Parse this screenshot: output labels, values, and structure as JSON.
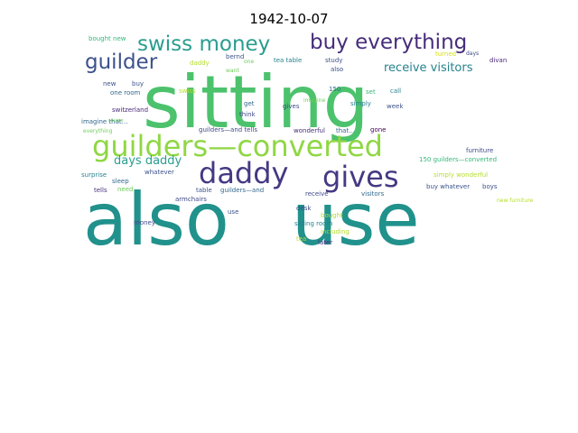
{
  "title": "1942-10-07",
  "words": [
    {
      "text": "sitting",
      "color": "#4cc26c"
    },
    {
      "text": "also",
      "color": "#21918c"
    },
    {
      "text": "use",
      "color": "#21918c"
    },
    {
      "text": "guilders—converted",
      "color": "#8fd744"
    },
    {
      "text": "daddy",
      "color": "#443983"
    },
    {
      "text": "gives",
      "color": "#443983"
    },
    {
      "text": "swiss money",
      "color": "#2a9d8f"
    },
    {
      "text": "buy everything",
      "color": "#472d7b"
    },
    {
      "text": "guilder",
      "color": "#3b528b"
    },
    {
      "text": "receive visitors",
      "color": "#26828e"
    },
    {
      "text": "days daddy",
      "color": "#2a9d8f"
    },
    {
      "text": "bought new",
      "color": "#35b779"
    },
    {
      "text": "daddy",
      "color": "#b5de2b"
    },
    {
      "text": "bernd",
      "color": "#3b528b"
    },
    {
      "text": "one",
      "color": "#6ece58"
    },
    {
      "text": "tea table",
      "color": "#26828e"
    },
    {
      "text": "study",
      "color": "#3b528b"
    },
    {
      "text": "also",
      "color": "#3b528b"
    },
    {
      "text": "turned",
      "color": "#d8e219"
    },
    {
      "text": "days",
      "color": "#3e4989"
    },
    {
      "text": "divan",
      "color": "#482878"
    },
    {
      "text": "want",
      "color": "#6ece58"
    },
    {
      "text": "new",
      "color": "#3b528b"
    },
    {
      "text": "buy",
      "color": "#3b528b"
    },
    {
      "text": "one room",
      "color": "#31688e"
    },
    {
      "text": "swiss",
      "color": "#b5de2b"
    },
    {
      "text": "150",
      "color": "#31688e"
    },
    {
      "text": "set",
      "color": "#35b779"
    },
    {
      "text": "call",
      "color": "#26828e"
    },
    {
      "text": "get",
      "color": "#31688e"
    },
    {
      "text": "gives",
      "color": "#3e4989"
    },
    {
      "text": "think",
      "color": "#3e4989"
    },
    {
      "text": "imagine",
      "color": "#6ece58"
    },
    {
      "text": "simply",
      "color": "#26828e"
    },
    {
      "text": "week",
      "color": "#3b528b"
    },
    {
      "text": "switzerland",
      "color": "#482878"
    },
    {
      "text": "imagine that…",
      "color": "#31688e"
    },
    {
      "text": "everything",
      "color": "#6ece58"
    },
    {
      "text": "guilders—and tells",
      "color": "#3e4989"
    },
    {
      "text": "wonderful",
      "color": "#472d7b"
    },
    {
      "text": "that…",
      "color": "#31688e"
    },
    {
      "text": "gone",
      "color": "#440154"
    },
    {
      "text": "furniture",
      "color": "#3e4989"
    },
    {
      "text": "150 guilders—converted",
      "color": "#35b779"
    },
    {
      "text": "surprise",
      "color": "#26828e"
    },
    {
      "text": "whatever",
      "color": "#3b528b"
    },
    {
      "text": "sleep",
      "color": "#31688e"
    },
    {
      "text": "simply wonderful",
      "color": "#b5de2b"
    },
    {
      "text": "tells",
      "color": "#472d7b"
    },
    {
      "text": "need",
      "color": "#6ece58"
    },
    {
      "text": "table",
      "color": "#3b528b"
    },
    {
      "text": "guilders—and",
      "color": "#31688e"
    },
    {
      "text": "buy whatever",
      "color": "#3b528b"
    },
    {
      "text": "boys",
      "color": "#3b528b"
    },
    {
      "text": "armchairs",
      "color": "#3e4989"
    },
    {
      "text": "receive",
      "color": "#3e4989"
    },
    {
      "text": "visitors",
      "color": "#31688e"
    },
    {
      "text": "new furniture",
      "color": "#b5de2b"
    },
    {
      "text": "use",
      "color": "#3b528b"
    },
    {
      "text": "desk",
      "color": "#3e4989"
    },
    {
      "text": "bought",
      "color": "#b5de2b"
    },
    {
      "text": "money",
      "color": "#3e4989"
    },
    {
      "text": "sitting room",
      "color": "#26828e"
    },
    {
      "text": "including",
      "color": "#b5de2b"
    },
    {
      "text": "tea",
      "color": "#b5de2b"
    },
    {
      "text": "later",
      "color": "#472d7b"
    },
    {
      "text": "source",
      "color": "#6ece58"
    }
  ]
}
